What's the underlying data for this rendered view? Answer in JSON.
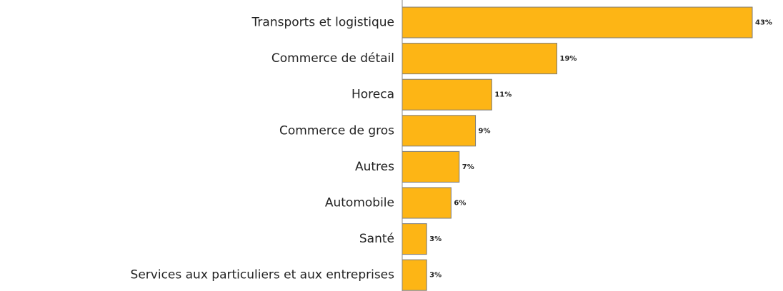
{
  "chart_data": {
    "type": "hbar",
    "categories": [
      "Transports et logistique",
      "Commerce de détail",
      "Horeca",
      "Commerce de gros",
      "Autres",
      "Automobile",
      "Santé",
      "Services aux particuliers et aux entreprises"
    ],
    "values": [
      43,
      19,
      11,
      9,
      7,
      6,
      3,
      3
    ],
    "value_labels": [
      "43%",
      "19%",
      "11%",
      "9%",
      "7%",
      "6%",
      "3%",
      "3%"
    ],
    "color": "#fdb515"
  }
}
